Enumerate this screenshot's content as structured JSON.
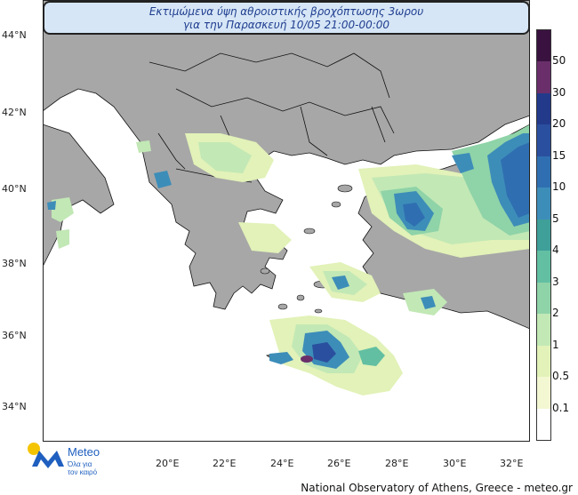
{
  "title": {
    "line1": "Εκτιμώμενα ύψη αθροιστικής βροχόπτωσης 3ωρου",
    "line2": "για την Παρασκευή 10/05 21:00-00:00"
  },
  "lat_labels": [
    "44°N",
    "42°N",
    "40°N",
    "38°N",
    "36°N",
    "34°N"
  ],
  "lon_labels": [
    "20°E",
    "22°E",
    "24°E",
    "26°E",
    "28°E",
    "30°E",
    "32°E"
  ],
  "legend": {
    "levels": [
      "0.1",
      "0.5",
      "1",
      "2",
      "3",
      "4",
      "5",
      "10",
      "15",
      "20",
      "30",
      "50"
    ],
    "colors": [
      "#ffffff",
      "#f3f7d2",
      "#e2f2b8",
      "#c2e8b5",
      "#8fd3a8",
      "#62bfa2",
      "#3f9f99",
      "#3d8db9",
      "#2f6fb1",
      "#2a4f9e",
      "#233a8b",
      "#6a2f6b",
      "#3a1240"
    ]
  },
  "colors": {
    "sea": "#ffffff",
    "land": "#a7a7a7",
    "border": "#111111",
    "title_text": "#1f3d8f",
    "title_bg": "#d6e6f6"
  },
  "logo": {
    "brand": "Meteo",
    "tagline_1": "Όλα για",
    "tagline_2": "τον καιρό"
  },
  "credit": "National Observatory of Athens, Greece - meteo.gr"
}
